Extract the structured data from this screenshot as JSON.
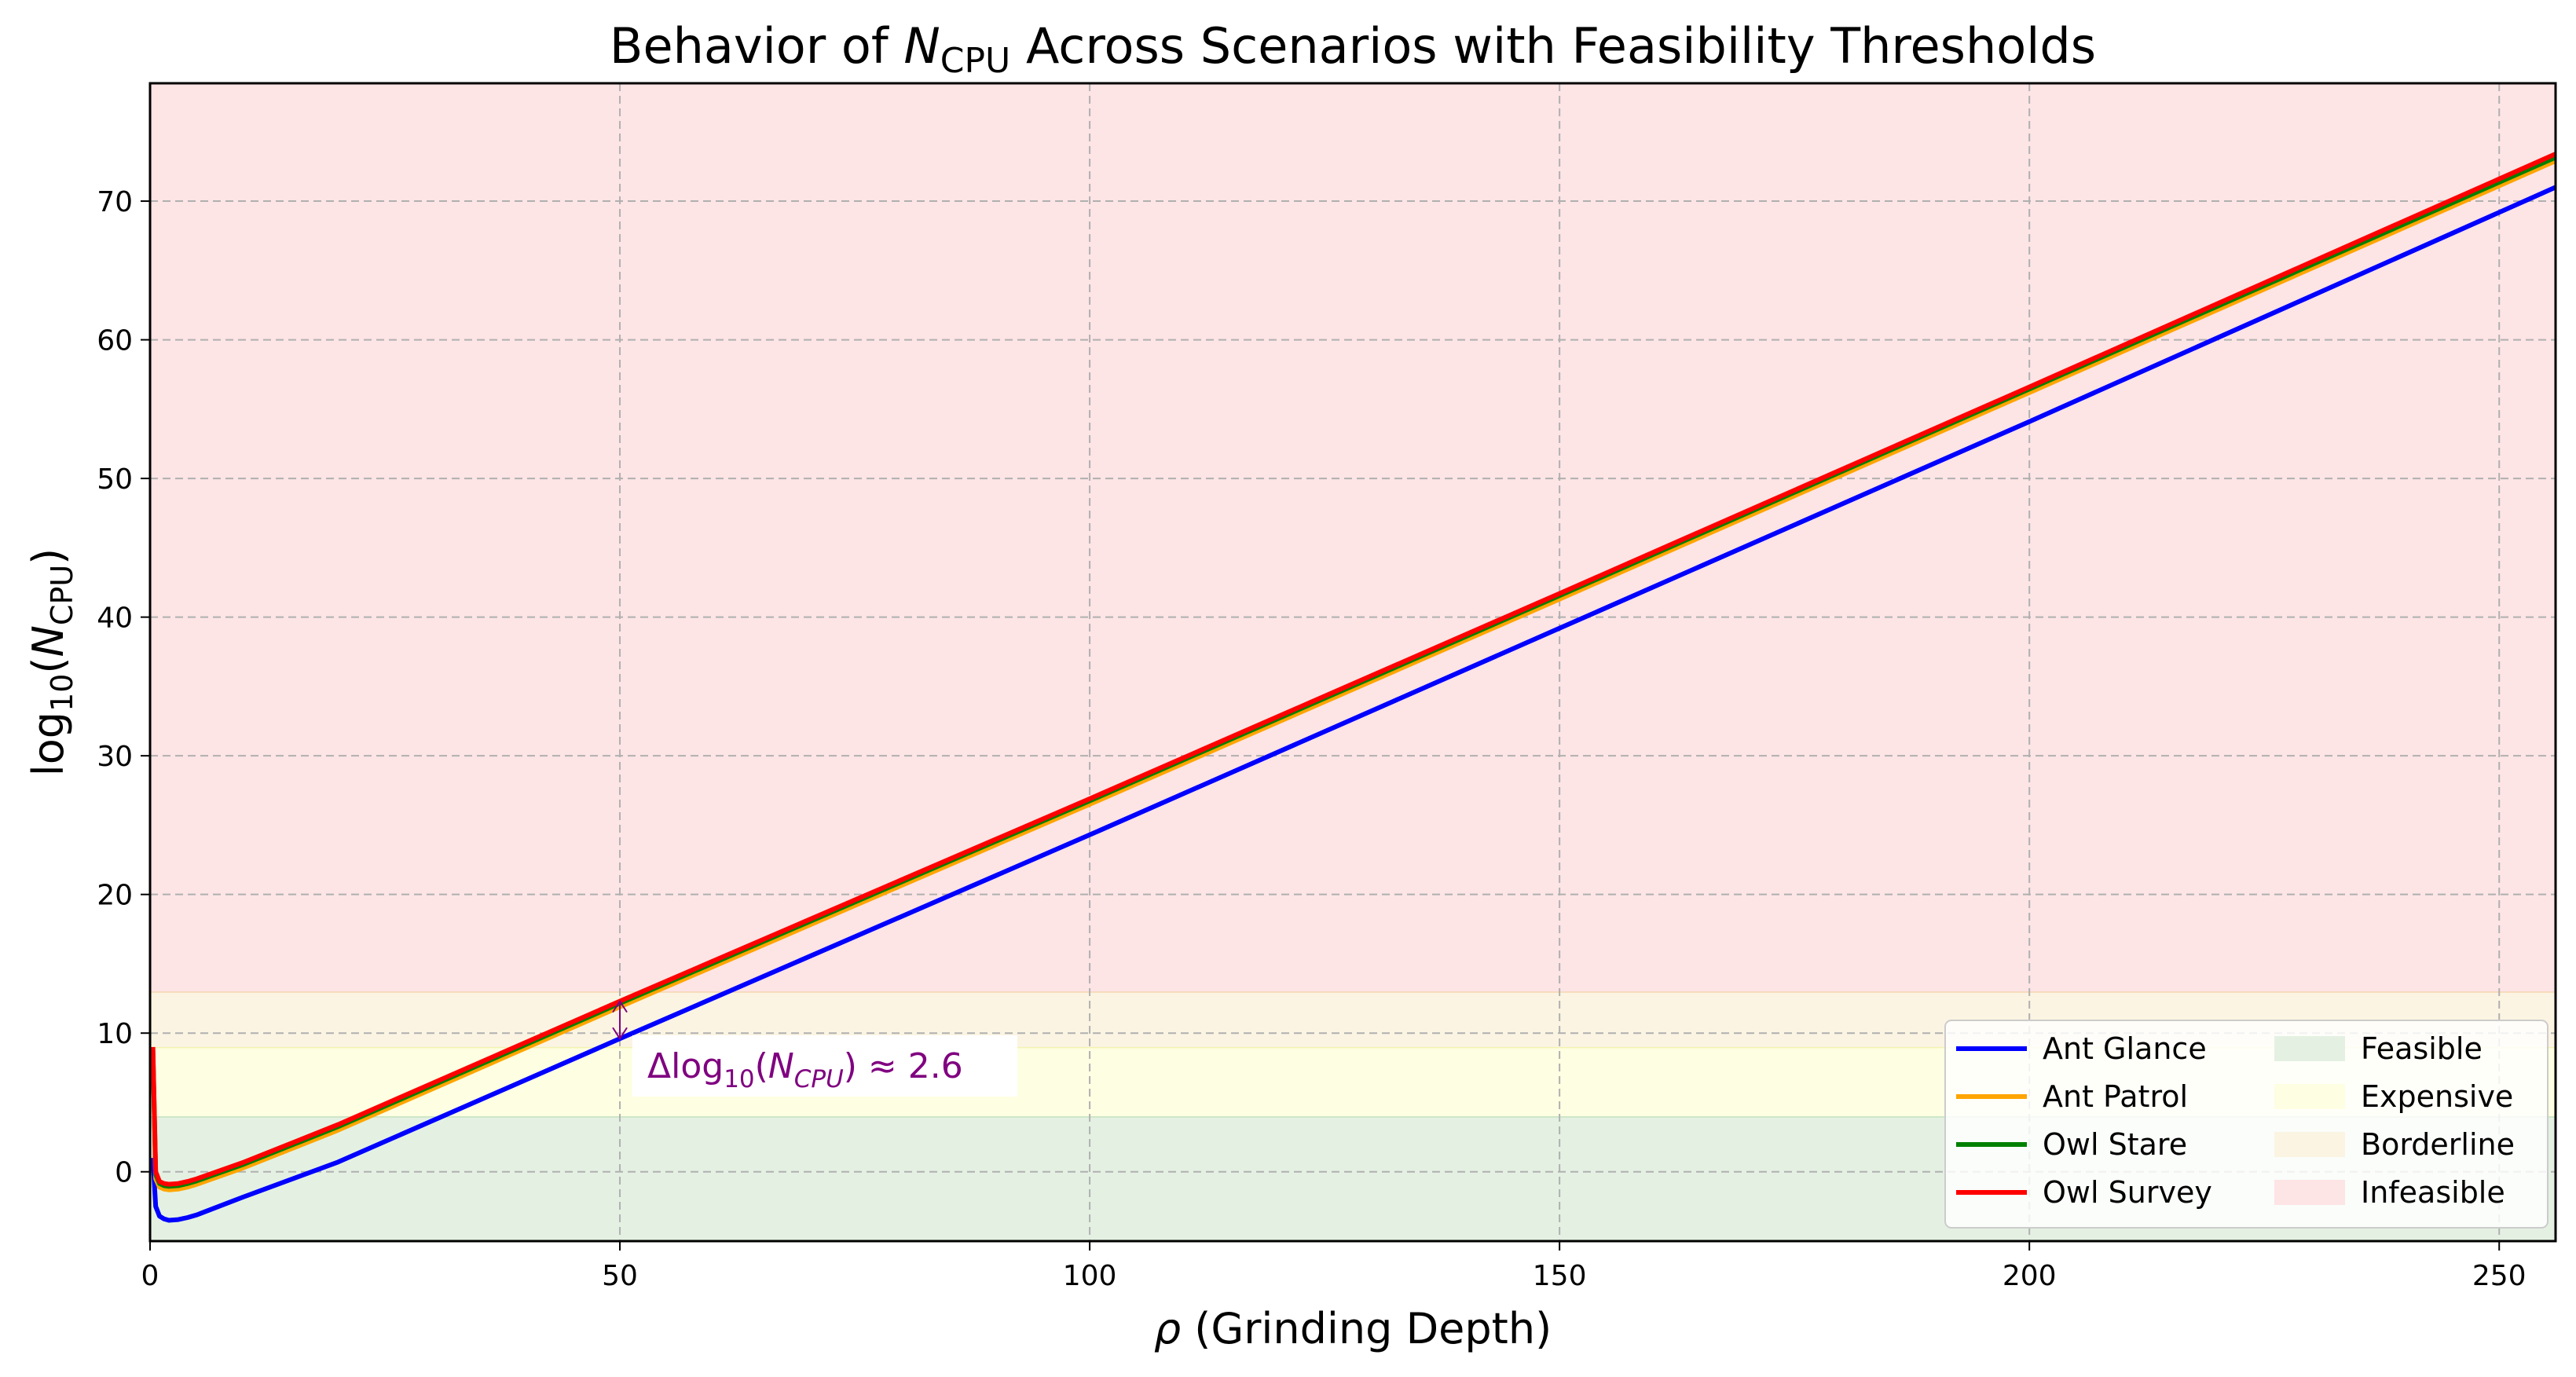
{
  "chart_data": {
    "type": "line",
    "title": {
      "prefix": "Behavior of ",
      "symbol": "N",
      "subscript": "CPU",
      "suffix": " Across Scenarios with Feasibility Thresholds"
    },
    "xlabel": {
      "symbol": "ρ",
      "text": " (Grinding Depth)"
    },
    "ylabel": {
      "func": "log",
      "func_sub": "10",
      "open": "(",
      "symbol": "N",
      "sub": "CPU",
      "close": ")"
    },
    "xlim": [
      0,
      256
    ],
    "ylim": [
      -5,
      78.5
    ],
    "x_ticks": [
      0,
      50,
      100,
      150,
      200,
      250
    ],
    "y_ticks": [
      0,
      10,
      20,
      30,
      40,
      50,
      60,
      70
    ],
    "grid": true,
    "legend_placement": "lower-right",
    "series": [
      {
        "name": "Ant Glance",
        "color": "#0000ff",
        "x": [
          0.3,
          0.6,
          1,
          1.5,
          2,
          3,
          4,
          5,
          10,
          20,
          50,
          100,
          150,
          200,
          256
        ],
        "y": [
          1,
          -2.5,
          -3.2,
          -3.4,
          -3.5,
          -3.45,
          -3.3,
          -3.1,
          -1.8,
          0.7,
          9.6,
          24.3,
          39.2,
          54.1,
          71.0
        ]
      },
      {
        "name": "Ant Patrol",
        "color": "#ffa500",
        "x": [
          0.3,
          0.6,
          1,
          1.5,
          2,
          3,
          4,
          5,
          10,
          20,
          50,
          100,
          150,
          200,
          256
        ],
        "y": [
          8.5,
          -0.5,
          -1.1,
          -1.25,
          -1.3,
          -1.25,
          -1.1,
          -0.9,
          0.3,
          3.0,
          11.9,
          26.5,
          41.3,
          56.2,
          72.9
        ]
      },
      {
        "name": "Owl Stare",
        "color": "#008000",
        "x": [
          0.3,
          0.6,
          1,
          1.5,
          2,
          3,
          4,
          5,
          10,
          20,
          50,
          100,
          150,
          200,
          256
        ],
        "y": [
          8.8,
          -0.2,
          -0.85,
          -1.0,
          -1.05,
          -1.0,
          -0.85,
          -0.65,
          0.55,
          3.25,
          12.15,
          26.75,
          41.55,
          56.45,
          73.15
        ]
      },
      {
        "name": "Owl Survey",
        "color": "#ff0000",
        "x": [
          0.3,
          0.6,
          1,
          1.5,
          2,
          3,
          4,
          5,
          10,
          20,
          50,
          100,
          150,
          200,
          256
        ],
        "y": [
          9.0,
          0.0,
          -0.7,
          -0.85,
          -0.9,
          -0.85,
          -0.7,
          -0.5,
          0.7,
          3.4,
          12.3,
          26.9,
          41.7,
          56.6,
          73.4
        ]
      }
    ],
    "regions": [
      {
        "name": "Feasible",
        "from": -5,
        "to": 4,
        "color": "#e4f1e2",
        "edge": "#c4e3bf"
      },
      {
        "name": "Expensive",
        "from": 4,
        "to": 9,
        "color": "#fefee2",
        "edge": "#f3f2b2"
      },
      {
        "name": "Borderline",
        "from": 9,
        "to": 13,
        "color": "#fbf4e2",
        "edge": "#f6d5b0"
      },
      {
        "name": "Infeasible",
        "from": 13,
        "to": 78.5,
        "color": "#fde4e5",
        "edge": "#f8c3c3"
      }
    ],
    "annotation": {
      "prefix": "Δlog",
      "sub": "10",
      "open": "(",
      "symbol": "N",
      "symbol_sub": "CPU",
      "close": ")",
      "approx": " ≈ 2.6",
      "color": "#800080",
      "arrow_x": 50,
      "arrow_from": 12.3,
      "arrow_to": 9.6
    }
  }
}
